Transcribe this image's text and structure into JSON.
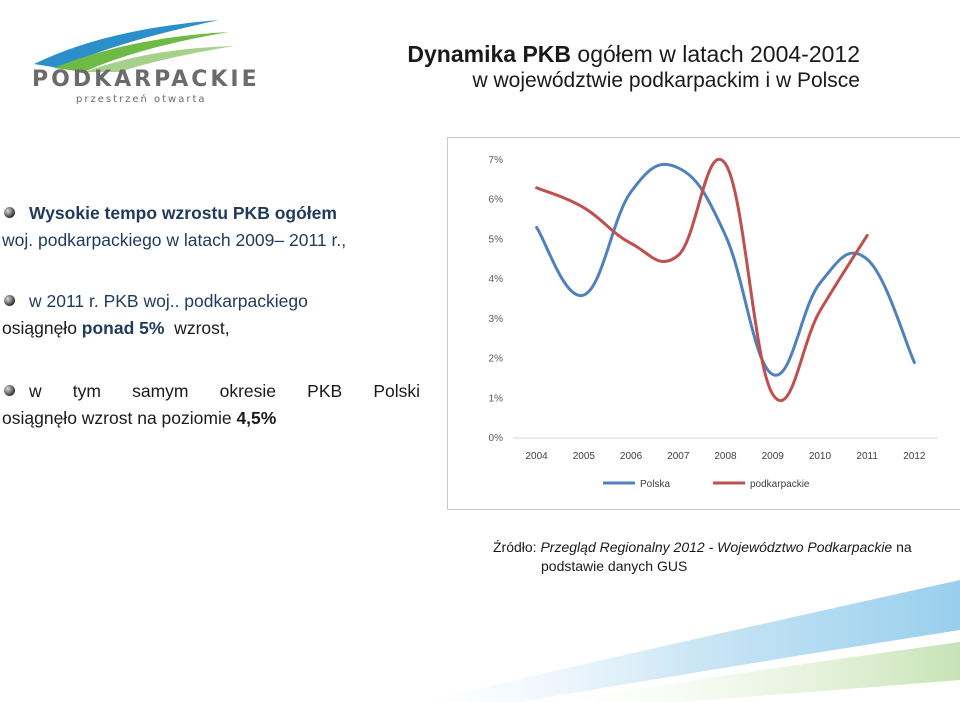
{
  "logo": {
    "name": "PODKARPACKIE",
    "tagline": "przestrzeń otwarta"
  },
  "title": {
    "bold": "Dynamika PKB",
    "rest": " ogółem w latach 2004-2012",
    "line2": "w województwie podkarpackim i w Polsce"
  },
  "bullets": {
    "b1_bold": "Wysokie tempo wzrostu PKB ogółem",
    "b1_rest": "woj. podkarpackiego w latach 2009– 2011 r.,",
    "b2_line1": "w 2011 r. PKB woj.. podkarpackiego",
    "b2_pre": "osiągnęło ",
    "b2_bold": "ponad 5%",
    "b2_post": "  wzrost,",
    "b3_line1": "w tym samym okresie PKB Polski",
    "b3_pre": "osiągnęło wzrost na poziomie ",
    "b3_bold": "4,5%"
  },
  "source": {
    "prefix": "Źródło: ",
    "italic": "Przegląd Regionalny 2012 - Województwo Podkarpackie",
    "suffix": " na",
    "line2": "podstawie danych GUS"
  },
  "colors": {
    "polska": "#4f81bd",
    "podkarpackie": "#c0504d",
    "axis": "#d9d9d9",
    "text": "#595959"
  },
  "chart_data": {
    "type": "line",
    "title": "",
    "x": [
      "2004",
      "2005",
      "2006",
      "2007",
      "2008",
      "2009",
      "2010",
      "2011",
      "2012"
    ],
    "y_ticks": [
      "0%",
      "1%",
      "2%",
      "3%",
      "4%",
      "5%",
      "6%",
      "7%"
    ],
    "ylim": [
      0,
      7
    ],
    "series": [
      {
        "name": "Polska",
        "values": [
          5.3,
          3.6,
          6.2,
          6.8,
          5.1,
          1.6,
          3.9,
          4.5,
          1.9
        ]
      },
      {
        "name": "podkarpackie",
        "values": [
          6.3,
          5.8,
          4.9,
          4.6,
          6.9,
          1.1,
          3.2,
          5.1,
          null
        ]
      }
    ],
    "legend": "bottom"
  }
}
